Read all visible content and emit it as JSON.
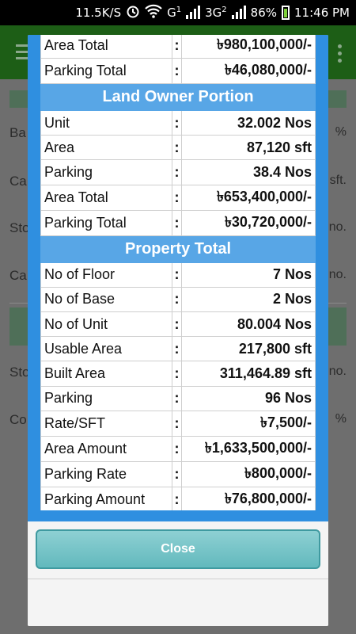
{
  "status_bar": {
    "speed": "11.5K/S",
    "network1": "G",
    "sim1": "1",
    "network2": "3G",
    "sim2": "2",
    "battery": "86%",
    "time": "11:46 PM"
  },
  "background": {
    "labels": [
      "Ba",
      "Ca",
      "Sto",
      "Ca",
      "Sto",
      "Co"
    ],
    "units": [
      "%",
      "sft.",
      "no.",
      "no.",
      "no.",
      "%"
    ]
  },
  "dialog": {
    "rows_top": [
      {
        "label": "Area Total",
        "value": "৳980,100,000/-"
      },
      {
        "label": "Parking Total",
        "value": "৳46,080,000/-"
      }
    ],
    "section_land": "Land Owner Portion",
    "rows_land": [
      {
        "label": "Unit",
        "value": "32.002 Nos"
      },
      {
        "label": "Area",
        "value": "87,120 sft"
      },
      {
        "label": "Parking",
        "value": "38.4 Nos"
      },
      {
        "label": "Area Total",
        "value": "৳653,400,000/-"
      },
      {
        "label": "Parking Total",
        "value": "৳30,720,000/-"
      }
    ],
    "section_property": "Property Total",
    "rows_property": [
      {
        "label": "No of Floor",
        "value": "7 Nos"
      },
      {
        "label": "No of Base",
        "value": "2 Nos"
      },
      {
        "label": "No of Unit",
        "value": "80.004 Nos"
      },
      {
        "label": "Usable Area",
        "value": "217,800 sft"
      },
      {
        "label": "Built Area",
        "value": "311,464.89 sft"
      },
      {
        "label": "Parking",
        "value": "96 Nos"
      },
      {
        "label": "Rate/SFT",
        "value": "৳7,500/-"
      },
      {
        "label": "Area Amount",
        "value": "৳1,633,500,000/-"
      },
      {
        "label": "Parking Rate",
        "value": "৳800,000/-"
      },
      {
        "label": "Parking Amount",
        "value": "৳76,800,000/-"
      }
    ],
    "colon": ":",
    "close_label": "Close"
  },
  "colors": {
    "header_green": "#1d5e16",
    "dialog_blue": "#2f8fe0",
    "section_blue": "#58a6e6",
    "button_teal": "#62b9bd"
  }
}
